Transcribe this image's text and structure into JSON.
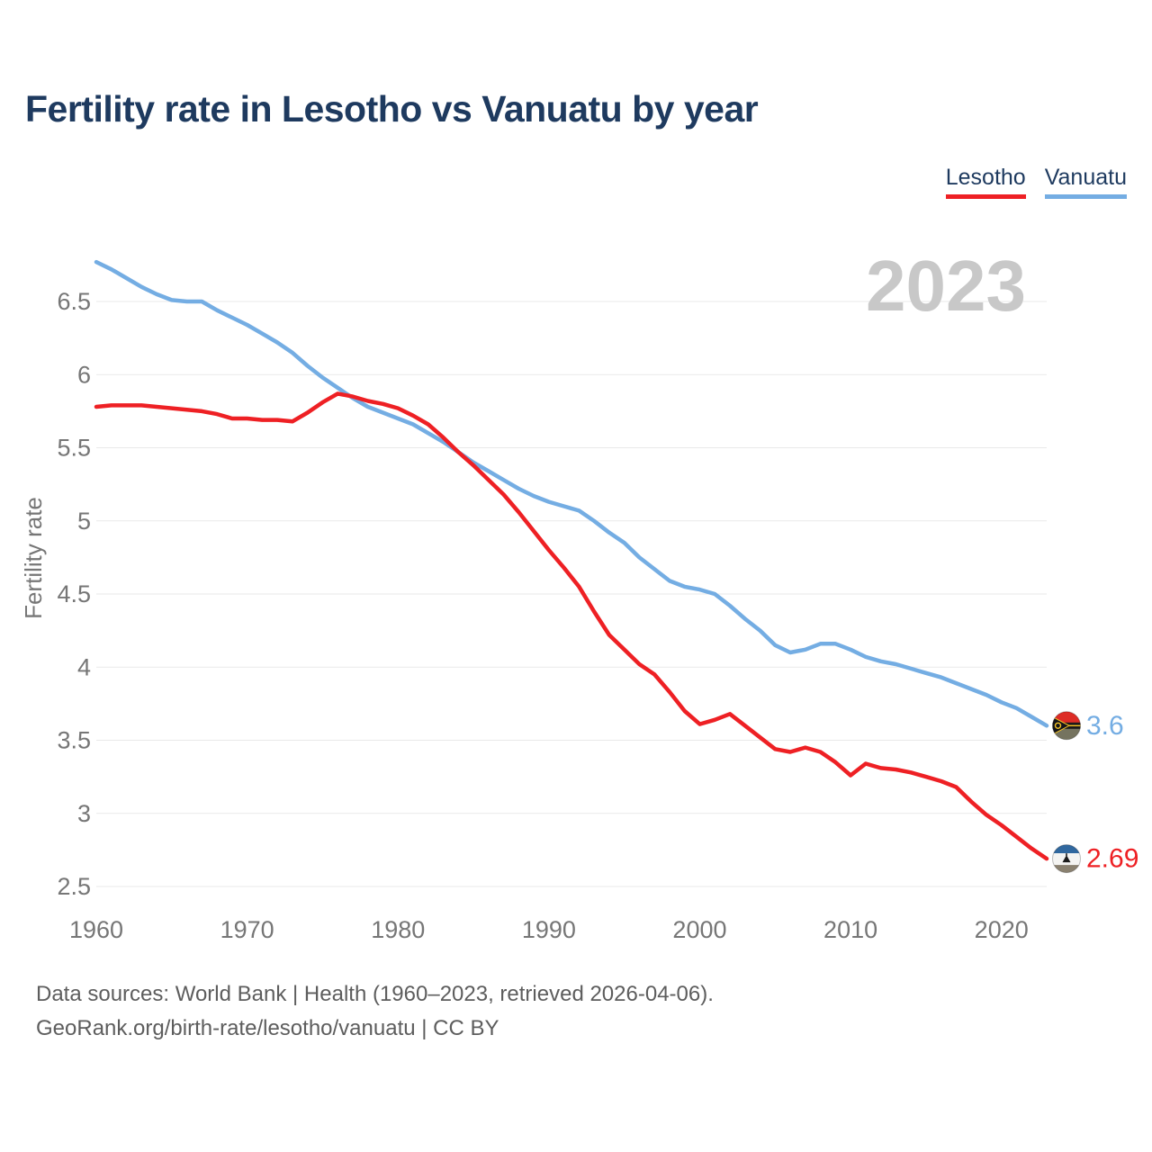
{
  "page": {
    "title": "Fertility rate in Lesotho vs Vanuatu by year",
    "watermark_year": "2023",
    "footer_line1": "Data sources: World Bank | Health (1960–2023, retrieved 2026-04-06).",
    "footer_line2": "GeoRank.org/birth-rate/lesotho/vanuatu | CC BY"
  },
  "legend": {
    "items": [
      {
        "label": "Lesotho",
        "color": "#ee2024"
      },
      {
        "label": "Vanuatu",
        "color": "#74ade3"
      }
    ]
  },
  "chart_data": {
    "type": "line",
    "title": "Fertility rate in Lesotho vs Vanuatu by year",
    "xlabel": "",
    "ylabel": "Fertility rate",
    "grid": true,
    "legend_position": "top-right",
    "x_ticks": [
      1960,
      1970,
      1980,
      1990,
      2000,
      2010,
      2020
    ],
    "y_ticks": [
      6.5,
      6,
      5.5,
      5,
      4.5,
      4,
      3.5,
      3,
      2.5
    ],
    "ylim": [
      2.5,
      6.9
    ],
    "xlim": [
      1960,
      2023
    ],
    "x": [
      1960,
      1961,
      1962,
      1963,
      1964,
      1965,
      1966,
      1967,
      1968,
      1969,
      1970,
      1971,
      1972,
      1973,
      1974,
      1975,
      1976,
      1977,
      1978,
      1979,
      1980,
      1981,
      1982,
      1983,
      1984,
      1985,
      1986,
      1987,
      1988,
      1989,
      1990,
      1991,
      1992,
      1993,
      1994,
      1995,
      1996,
      1997,
      1998,
      1999,
      2000,
      2001,
      2002,
      2003,
      2004,
      2005,
      2006,
      2007,
      2008,
      2009,
      2010,
      2011,
      2012,
      2013,
      2014,
      2015,
      2016,
      2017,
      2018,
      2019,
      2020,
      2021,
      2022,
      2023
    ],
    "series": [
      {
        "name": "Vanuatu",
        "color": "#74ade3",
        "end_label": "3.6",
        "final_value": 3.6,
        "values": [
          6.77,
          6.72,
          6.66,
          6.6,
          6.55,
          6.51,
          6.5,
          6.5,
          6.44,
          6.39,
          6.34,
          6.28,
          6.22,
          6.15,
          6.06,
          5.98,
          5.91,
          5.84,
          5.78,
          5.74,
          5.7,
          5.66,
          5.6,
          5.54,
          5.47,
          5.4,
          5.34,
          5.28,
          5.22,
          5.17,
          5.13,
          5.1,
          5.07,
          5.0,
          4.92,
          4.85,
          4.75,
          4.67,
          4.59,
          4.55,
          4.53,
          4.5,
          4.42,
          4.33,
          4.25,
          4.15,
          4.1,
          4.12,
          4.16,
          4.16,
          4.12,
          4.07,
          4.04,
          4.02,
          3.99,
          3.96,
          3.93,
          3.89,
          3.85,
          3.81,
          3.76,
          3.72,
          3.66,
          3.6
        ]
      },
      {
        "name": "Lesotho",
        "color": "#ee2024",
        "end_label": "2.69",
        "final_value": 2.69,
        "values": [
          5.78,
          5.79,
          5.79,
          5.79,
          5.78,
          5.77,
          5.76,
          5.75,
          5.73,
          5.7,
          5.7,
          5.69,
          5.69,
          5.68,
          5.74,
          5.81,
          5.87,
          5.85,
          5.82,
          5.8,
          5.77,
          5.72,
          5.66,
          5.57,
          5.47,
          5.38,
          5.28,
          5.18,
          5.06,
          4.93,
          4.8,
          4.68,
          4.55,
          4.38,
          4.22,
          4.12,
          4.02,
          3.95,
          3.83,
          3.7,
          3.61,
          3.64,
          3.68,
          3.6,
          3.52,
          3.44,
          3.42,
          3.45,
          3.42,
          3.35,
          3.26,
          3.34,
          3.31,
          3.3,
          3.28,
          3.25,
          3.22,
          3.18,
          3.08,
          2.99,
          2.92,
          2.84,
          2.76,
          2.69
        ]
      }
    ]
  }
}
